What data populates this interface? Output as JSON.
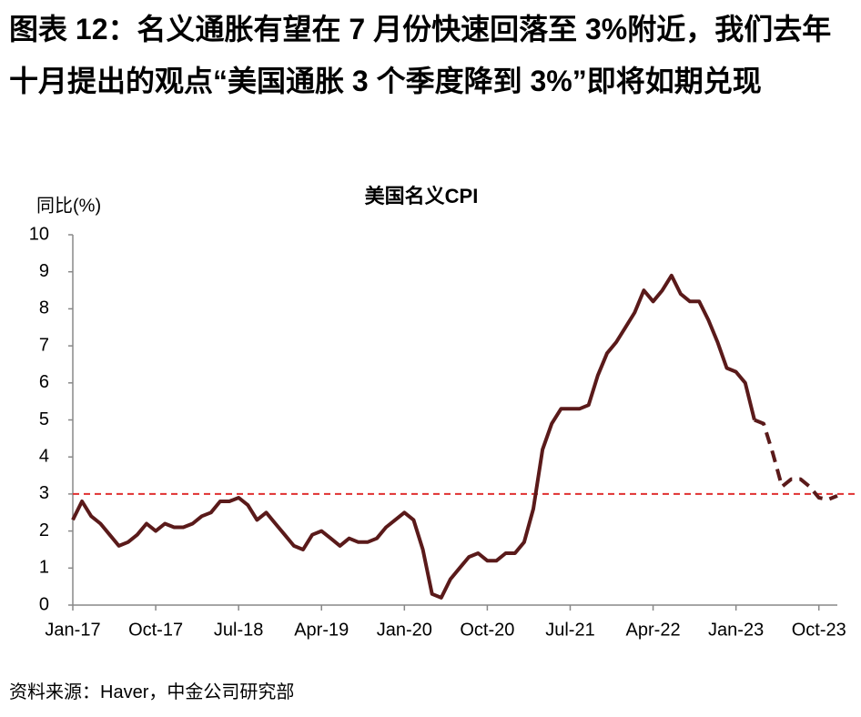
{
  "chart_data": {
    "type": "line",
    "heading": "图表 12：名义通胀有望在 7 月份快速回落至 3%附近，我们去年十月提出的观点“美国通胀 3 个季度降到 3%”即将如期兑现",
    "title": "美国名义CPI",
    "y_label": "同比(%)",
    "source": "资料来源：Haver，中金公司研究部",
    "categories": [
      "Jan-17",
      null,
      null,
      null,
      null,
      null,
      null,
      null,
      null,
      "Oct-17",
      null,
      null,
      null,
      null,
      null,
      null,
      null,
      null,
      "Jul-18",
      null,
      null,
      null,
      null,
      null,
      null,
      null,
      null,
      "Apr-19",
      null,
      null,
      null,
      null,
      null,
      null,
      null,
      null,
      "Jan-20",
      null,
      null,
      null,
      null,
      null,
      null,
      null,
      null,
      "Oct-20",
      null,
      null,
      null,
      null,
      null,
      null,
      null,
      null,
      "Jul-21",
      null,
      null,
      null,
      null,
      null,
      null,
      null,
      null,
      "Apr-22",
      null,
      null,
      null,
      null,
      null,
      null,
      null,
      null,
      "Jan-23",
      null,
      null,
      null,
      null,
      null,
      null,
      null,
      null,
      "Oct-23",
      null,
      null
    ],
    "series": [
      {
        "color": "#5a1a1a",
        "dashed": false,
        "values": [
          2.3,
          2.8,
          2.4,
          2.2,
          1.9,
          1.6,
          1.7,
          1.9,
          2.2,
          2.0,
          2.2,
          2.1,
          2.1,
          2.2,
          2.4,
          2.5,
          2.8,
          2.8,
          2.9,
          2.7,
          2.3,
          2.5,
          2.2,
          1.9,
          1.6,
          1.5,
          1.9,
          2.0,
          1.8,
          1.6,
          1.8,
          1.7,
          1.7,
          1.8,
          2.1,
          2.3,
          2.5,
          2.3,
          1.5,
          0.3,
          0.2,
          0.7,
          1.0,
          1.3,
          1.4,
          1.2,
          1.2,
          1.4,
          1.4,
          1.7,
          2.6,
          4.2,
          4.9,
          5.3,
          5.3,
          5.3,
          5.4,
          6.2,
          6.8,
          7.1,
          7.5,
          7.9,
          8.5,
          8.2,
          8.5,
          8.9,
          8.4,
          8.2,
          8.2,
          7.7,
          7.1,
          6.4,
          6.3,
          6.0,
          5.0,
          null,
          null,
          null,
          null,
          null,
          null,
          null,
          null,
          null
        ]
      },
      {
        "color": "#5a1a1a",
        "dashed": true,
        "values": [
          null,
          null,
          null,
          null,
          null,
          null,
          null,
          null,
          null,
          null,
          null,
          null,
          null,
          null,
          null,
          null,
          null,
          null,
          null,
          null,
          null,
          null,
          null,
          null,
          null,
          null,
          null,
          null,
          null,
          null,
          null,
          null,
          null,
          null,
          null,
          null,
          null,
          null,
          null,
          null,
          null,
          null,
          null,
          null,
          null,
          null,
          null,
          null,
          null,
          null,
          null,
          null,
          null,
          null,
          null,
          null,
          null,
          null,
          null,
          null,
          null,
          null,
          null,
          null,
          null,
          null,
          null,
          null,
          null,
          null,
          null,
          null,
          null,
          null,
          5.0,
          4.9,
          4.1,
          3.2,
          3.4,
          3.4,
          3.2,
          2.9,
          2.85,
          2.95
        ]
      }
    ],
    "reference_line": {
      "value": 3,
      "color": "#e03030"
    },
    "ylim": [
      0,
      10
    ],
    "yticks": [
      0,
      1,
      2,
      3,
      4,
      5,
      6,
      7,
      8,
      9,
      10
    ]
  }
}
